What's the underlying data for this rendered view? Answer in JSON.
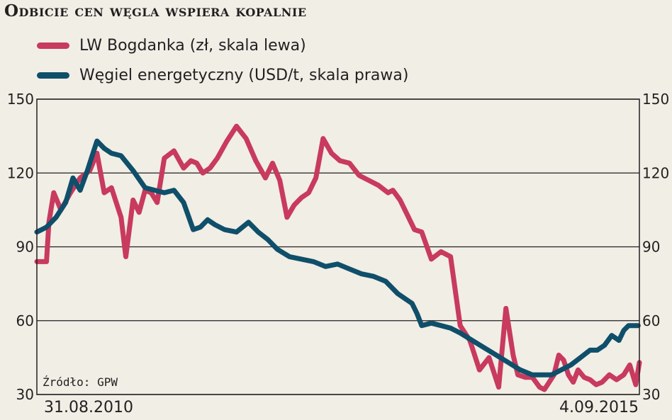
{
  "title": "Odbicie cen węgla wspiera kopalnie",
  "source": "Źródło: GPW",
  "x_start_label": "31.08.2010",
  "x_end_label": "4.09.2015",
  "chart_data": {
    "type": "line",
    "title": "Odbicie cen węgla wspiera kopalnie",
    "x_range": [
      "31.08.2010",
      "4.09.2015"
    ],
    "x_units": "years since 31.08.2010",
    "y_left": {
      "ylim": [
        30,
        150
      ],
      "ticks": [
        "30",
        "60",
        "90",
        "120",
        "150"
      ]
    },
    "y_right": {
      "ylim": [
        30,
        150
      ],
      "ticks": [
        "30",
        "60",
        "90",
        "120",
        "150"
      ]
    },
    "grid": true,
    "legend": "top-left",
    "series": [
      {
        "name": "LW Bogdanka (zł, skala lewa)",
        "color": "#c83a5e",
        "axis": "left",
        "x": [
          0,
          0.08,
          0.1,
          0.14,
          0.2,
          0.28,
          0.36,
          0.44,
          0.5,
          0.56,
          0.62,
          0.7,
          0.74,
          0.8,
          0.85,
          0.9,
          0.95,
          1.0,
          1.06,
          1.14,
          1.22,
          1.28,
          1.33,
          1.38,
          1.44,
          1.5,
          1.58,
          1.66,
          1.74,
          1.82,
          1.9,
          1.96,
          2.02,
          2.08,
          2.14,
          2.2,
          2.26,
          2.32,
          2.38,
          2.45,
          2.52,
          2.6,
          2.68,
          2.76,
          2.84,
          2.92,
          2.96,
          3.02,
          3.08,
          3.14,
          3.2,
          3.28,
          3.36,
          3.44,
          3.52,
          3.6,
          3.68,
          3.76,
          3.84,
          3.9,
          3.96,
          4.0,
          4.06,
          4.12,
          4.18,
          4.22,
          4.26,
          4.3,
          4.34,
          4.38,
          4.42,
          4.46,
          4.5,
          4.55,
          4.6,
          4.65,
          4.7,
          4.76,
          4.82,
          4.88,
          4.93,
          4.98,
          5.01
        ],
        "values": [
          84,
          84,
          100,
          112,
          105,
          112,
          118,
          121,
          128,
          112,
          114,
          102,
          86,
          109,
          104,
          113,
          112,
          108,
          126,
          129,
          122,
          125,
          124,
          120,
          122,
          126,
          133,
          139,
          134,
          125,
          118,
          124,
          117,
          102,
          107,
          110,
          112,
          118,
          134,
          128,
          125,
          124,
          119,
          117,
          115,
          112,
          113,
          109,
          103,
          97,
          96,
          85,
          88,
          86,
          58,
          52,
          40,
          45,
          33,
          65,
          46,
          38,
          37,
          37,
          33,
          32,
          35,
          38,
          46,
          44,
          38,
          35,
          40,
          37,
          36,
          34,
          35,
          38,
          36,
          38,
          42,
          34,
          43
        ]
      },
      {
        "name": "Węgiel energetyczny (USD/t, skala prawa)",
        "color": "#0f4f6a",
        "axis": "right",
        "x": [
          0,
          0.08,
          0.16,
          0.24,
          0.3,
          0.36,
          0.42,
          0.46,
          0.5,
          0.56,
          0.62,
          0.7,
          0.8,
          0.9,
          0.98,
          1.06,
          1.14,
          1.22,
          1.3,
          1.36,
          1.42,
          1.48,
          1.56,
          1.66,
          1.76,
          1.84,
          1.92,
          2.0,
          2.1,
          2.2,
          2.3,
          2.4,
          2.5,
          2.6,
          2.7,
          2.8,
          2.9,
          3.0,
          3.06,
          3.12,
          3.16,
          3.2,
          3.28,
          3.36,
          3.44,
          3.52,
          3.62,
          3.72,
          3.82,
          3.92,
          4.02,
          4.12,
          4.2,
          4.28,
          4.36,
          4.44,
          4.52,
          4.6,
          4.66,
          4.72,
          4.78,
          4.84,
          4.88,
          4.92,
          4.96,
          5.0
        ],
        "values": [
          96,
          98,
          102,
          108,
          118,
          113,
          121,
          127,
          133,
          130,
          128,
          127,
          121,
          114,
          113,
          112,
          113,
          108,
          97,
          98,
          101,
          99,
          97,
          96,
          100,
          96,
          93,
          89,
          86,
          85,
          84,
          82,
          83,
          81,
          79,
          78,
          76,
          71,
          69,
          67,
          63,
          58,
          59,
          58,
          57,
          55,
          52,
          49,
          46,
          43,
          40,
          38,
          38,
          38,
          40,
          42,
          45,
          48,
          48,
          50,
          54,
          52,
          56,
          58,
          58,
          58
        ]
      }
    ]
  }
}
